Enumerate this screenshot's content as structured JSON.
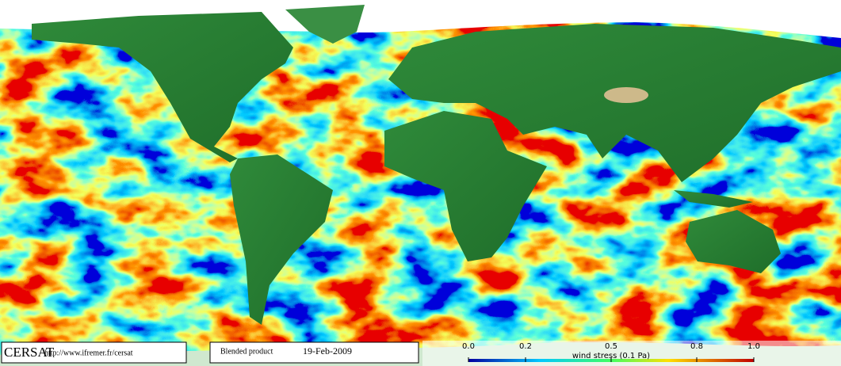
{
  "footer": {
    "logo": "CERSAT",
    "url": "http://www.ifremer.fr/cersat",
    "product": "Blended product",
    "date": "19-Feb-2009"
  },
  "colorbar": {
    "range": [
      0,
      1
    ],
    "ticks": [
      {
        "value": 0,
        "label": "0.0"
      },
      0.2,
      0.5,
      0.8,
      {
        "value": 1,
        "label": "1.0"
      }
    ],
    "label": "wind stress (0.1 Pa)"
  }
}
